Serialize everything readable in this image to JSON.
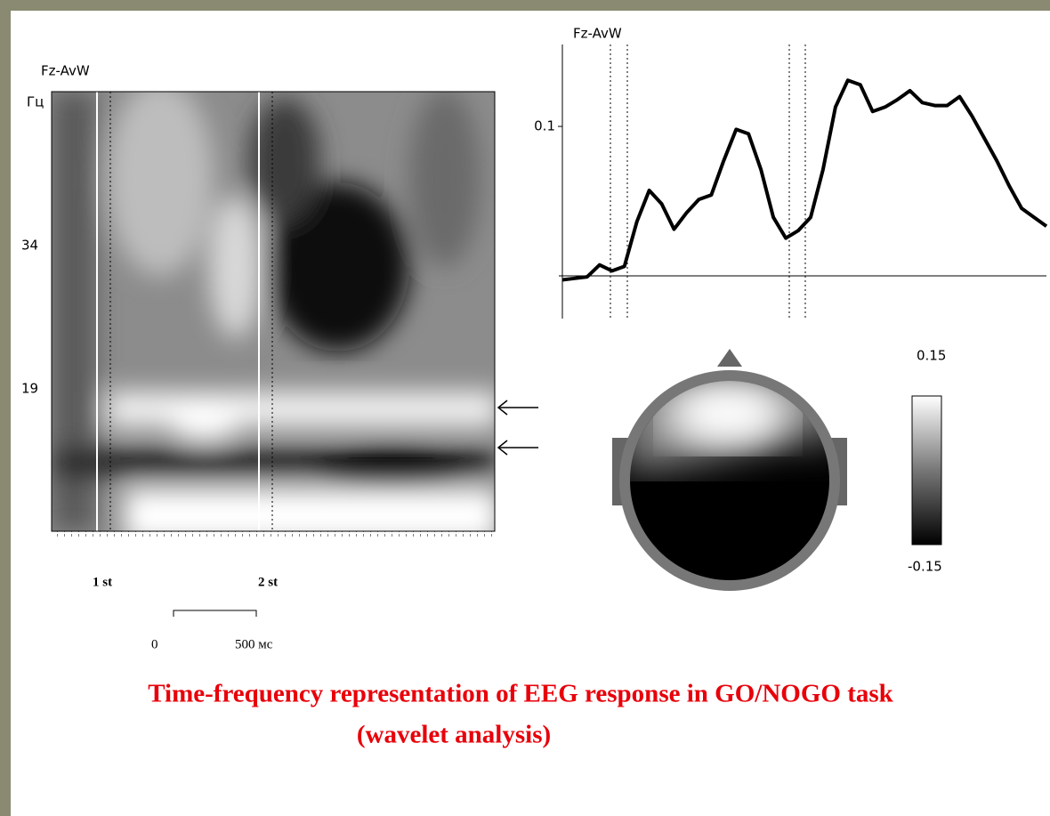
{
  "chart_data": {
    "type": "line",
    "title": "Fz-AvW",
    "values": [
      -0.003,
      -0.002,
      -0.001,
      0.007,
      0.003,
      0.006,
      0.036,
      0.057,
      0.048,
      0.031,
      0.042,
      0.051,
      0.054,
      0.077,
      0.098,
      0.095,
      0.071,
      0.039,
      0.025,
      0.03,
      0.039,
      0.071,
      0.113,
      0.131,
      0.128,
      0.11,
      0.113,
      0.118,
      0.124,
      0.116,
      0.114,
      0.114,
      0.12,
      0.107,
      0.092,
      0.077,
      0.06,
      0.045,
      0.039,
      0.033
    ],
    "color": "#000000",
    "ylim": [
      -0.029,
      0.155
    ],
    "yticks": [
      0.1
    ]
  },
  "spectrogram": {
    "title": "Fz-AvW",
    "yticks": [
      "Гц",
      "34",
      "19"
    ],
    "stimuli": [
      "1 st",
      "2 st"
    ],
    "scale": [
      "0",
      "500 мс"
    ]
  },
  "colorbar": {
    "max": "0.15",
    "min": "-0.15"
  },
  "caption": [
    "Time-frequency representation of EEG response in GO/NOGO task",
    "(wavelet analysis)"
  ]
}
